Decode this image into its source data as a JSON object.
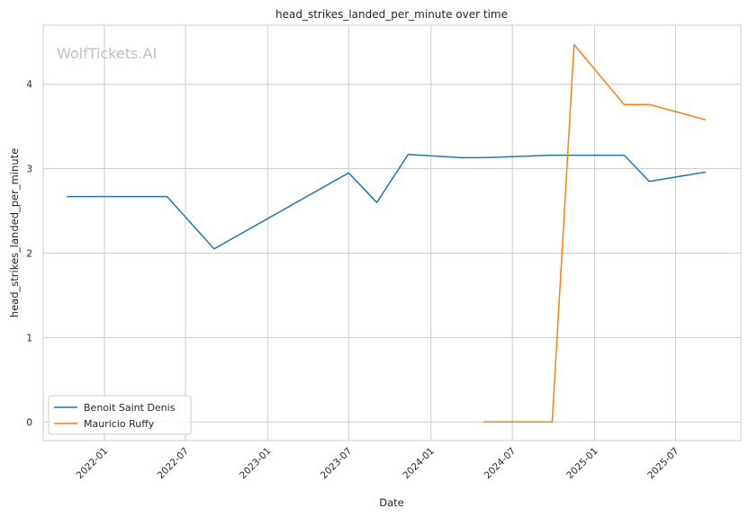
{
  "chart_data": {
    "type": "line",
    "title": "head_strikes_landed_per_minute over time",
    "xlabel": "Date",
    "ylabel": "head_strikes_landed_per_minute",
    "watermark": "WolfTickets.AI",
    "x_ticks": [
      "2022-01",
      "2022-07",
      "2023-01",
      "2023-07",
      "2024-01",
      "2024-07",
      "2025-01",
      "2025-07"
    ],
    "y_ticks": [
      0,
      1,
      2,
      3,
      4
    ],
    "xlim": [
      "2021-08-17",
      "2025-11-24"
    ],
    "ylim": [
      -0.22,
      4.7
    ],
    "grid": true,
    "legend_position": "lower-left",
    "series": [
      {
        "name": "Benoit Saint Denis",
        "color": "#1f77b4",
        "points": [
          {
            "x": "2021-10-09",
            "y": 2.67
          },
          {
            "x": "2022-05-21",
            "y": 2.67
          },
          {
            "x": "2022-09-03",
            "y": 2.05
          },
          {
            "x": "2023-07-01",
            "y": 2.95
          },
          {
            "x": "2023-09-02",
            "y": 2.6
          },
          {
            "x": "2023-11-11",
            "y": 3.17
          },
          {
            "x": "2024-03-09",
            "y": 3.13
          },
          {
            "x": "2024-04-27",
            "y": 3.13
          },
          {
            "x": "2024-09-28",
            "y": 3.16
          },
          {
            "x": "2025-03-08",
            "y": 3.16
          },
          {
            "x": "2025-05-03",
            "y": 2.85
          },
          {
            "x": "2025-09-06",
            "y": 2.96
          }
        ]
      },
      {
        "name": "Mauricio Ruffy",
        "color": "#ff7f0e",
        "points": [
          {
            "x": "2024-04-27",
            "y": 0.0
          },
          {
            "x": "2024-09-28",
            "y": 0.0
          },
          {
            "x": "2024-11-16",
            "y": 4.47
          },
          {
            "x": "2025-03-08",
            "y": 3.76
          },
          {
            "x": "2025-05-03",
            "y": 3.76
          },
          {
            "x": "2025-09-06",
            "y": 3.58
          }
        ]
      }
    ]
  }
}
